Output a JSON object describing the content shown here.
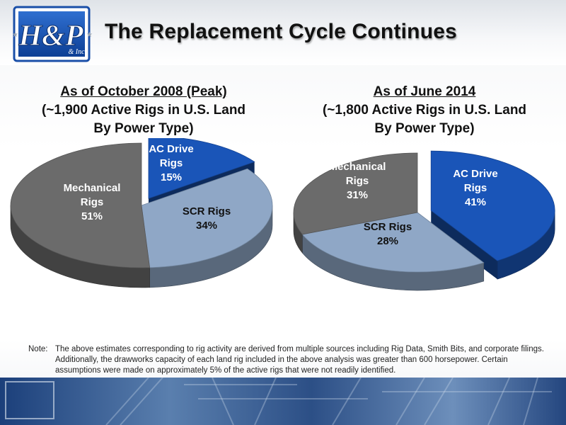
{
  "header": {
    "title": "The Replacement Cycle Continues",
    "logo_text": "H&P",
    "logo_small": "& Inc"
  },
  "chart_data": [
    {
      "type": "pie",
      "title_lines": [
        "As of October 2008 (Peak)",
        "(~1,900 Active Rigs in U.S. Land",
        "By Power Type)"
      ],
      "slices": [
        {
          "label_lines": [
            "AC Drive",
            "Rigs",
            "15%"
          ],
          "value": 15,
          "color": "#1a55b8",
          "label_color": "#ffffff"
        },
        {
          "label_lines": [
            "SCR Rigs",
            "34%"
          ],
          "value": 34,
          "color": "#8fa7c6",
          "label_color": "#111111"
        },
        {
          "label_lines": [
            "Mechanical",
            "Rigs",
            "51%"
          ],
          "value": 51,
          "color": "#6b6b6b",
          "label_color": "#ffffff"
        }
      ],
      "exploded": "AC Drive Rigs",
      "style": "3d-pie"
    },
    {
      "type": "pie",
      "title_lines": [
        "As of June 2014",
        "(~1,800 Active Rigs in U.S. Land",
        "By Power Type)"
      ],
      "slices": [
        {
          "label_lines": [
            "AC Drive",
            "Rigs",
            "41%"
          ],
          "value": 41,
          "color": "#1a55b8",
          "label_color": "#ffffff"
        },
        {
          "label_lines": [
            "SCR Rigs",
            "28%"
          ],
          "value": 28,
          "color": "#8fa7c6",
          "label_color": "#111111"
        },
        {
          "label_lines": [
            "Mechanical",
            "Rigs",
            "31%"
          ],
          "value": 31,
          "color": "#6b6b6b",
          "label_color": "#ffffff"
        }
      ],
      "exploded": "AC Drive Rigs",
      "style": "3d-pie"
    }
  ],
  "note": {
    "label": "Note:",
    "text": "The above estimates corresponding to rig activity are derived from multiple sources including Rig Data, Smith Bits, and corporate filings.  Additionally, the drawworks capacity of each land rig included in the above analysis was greater than 600 horsepower.  Certain assumptions were made on approximately 5% of the active rigs that were not readily identified."
  }
}
